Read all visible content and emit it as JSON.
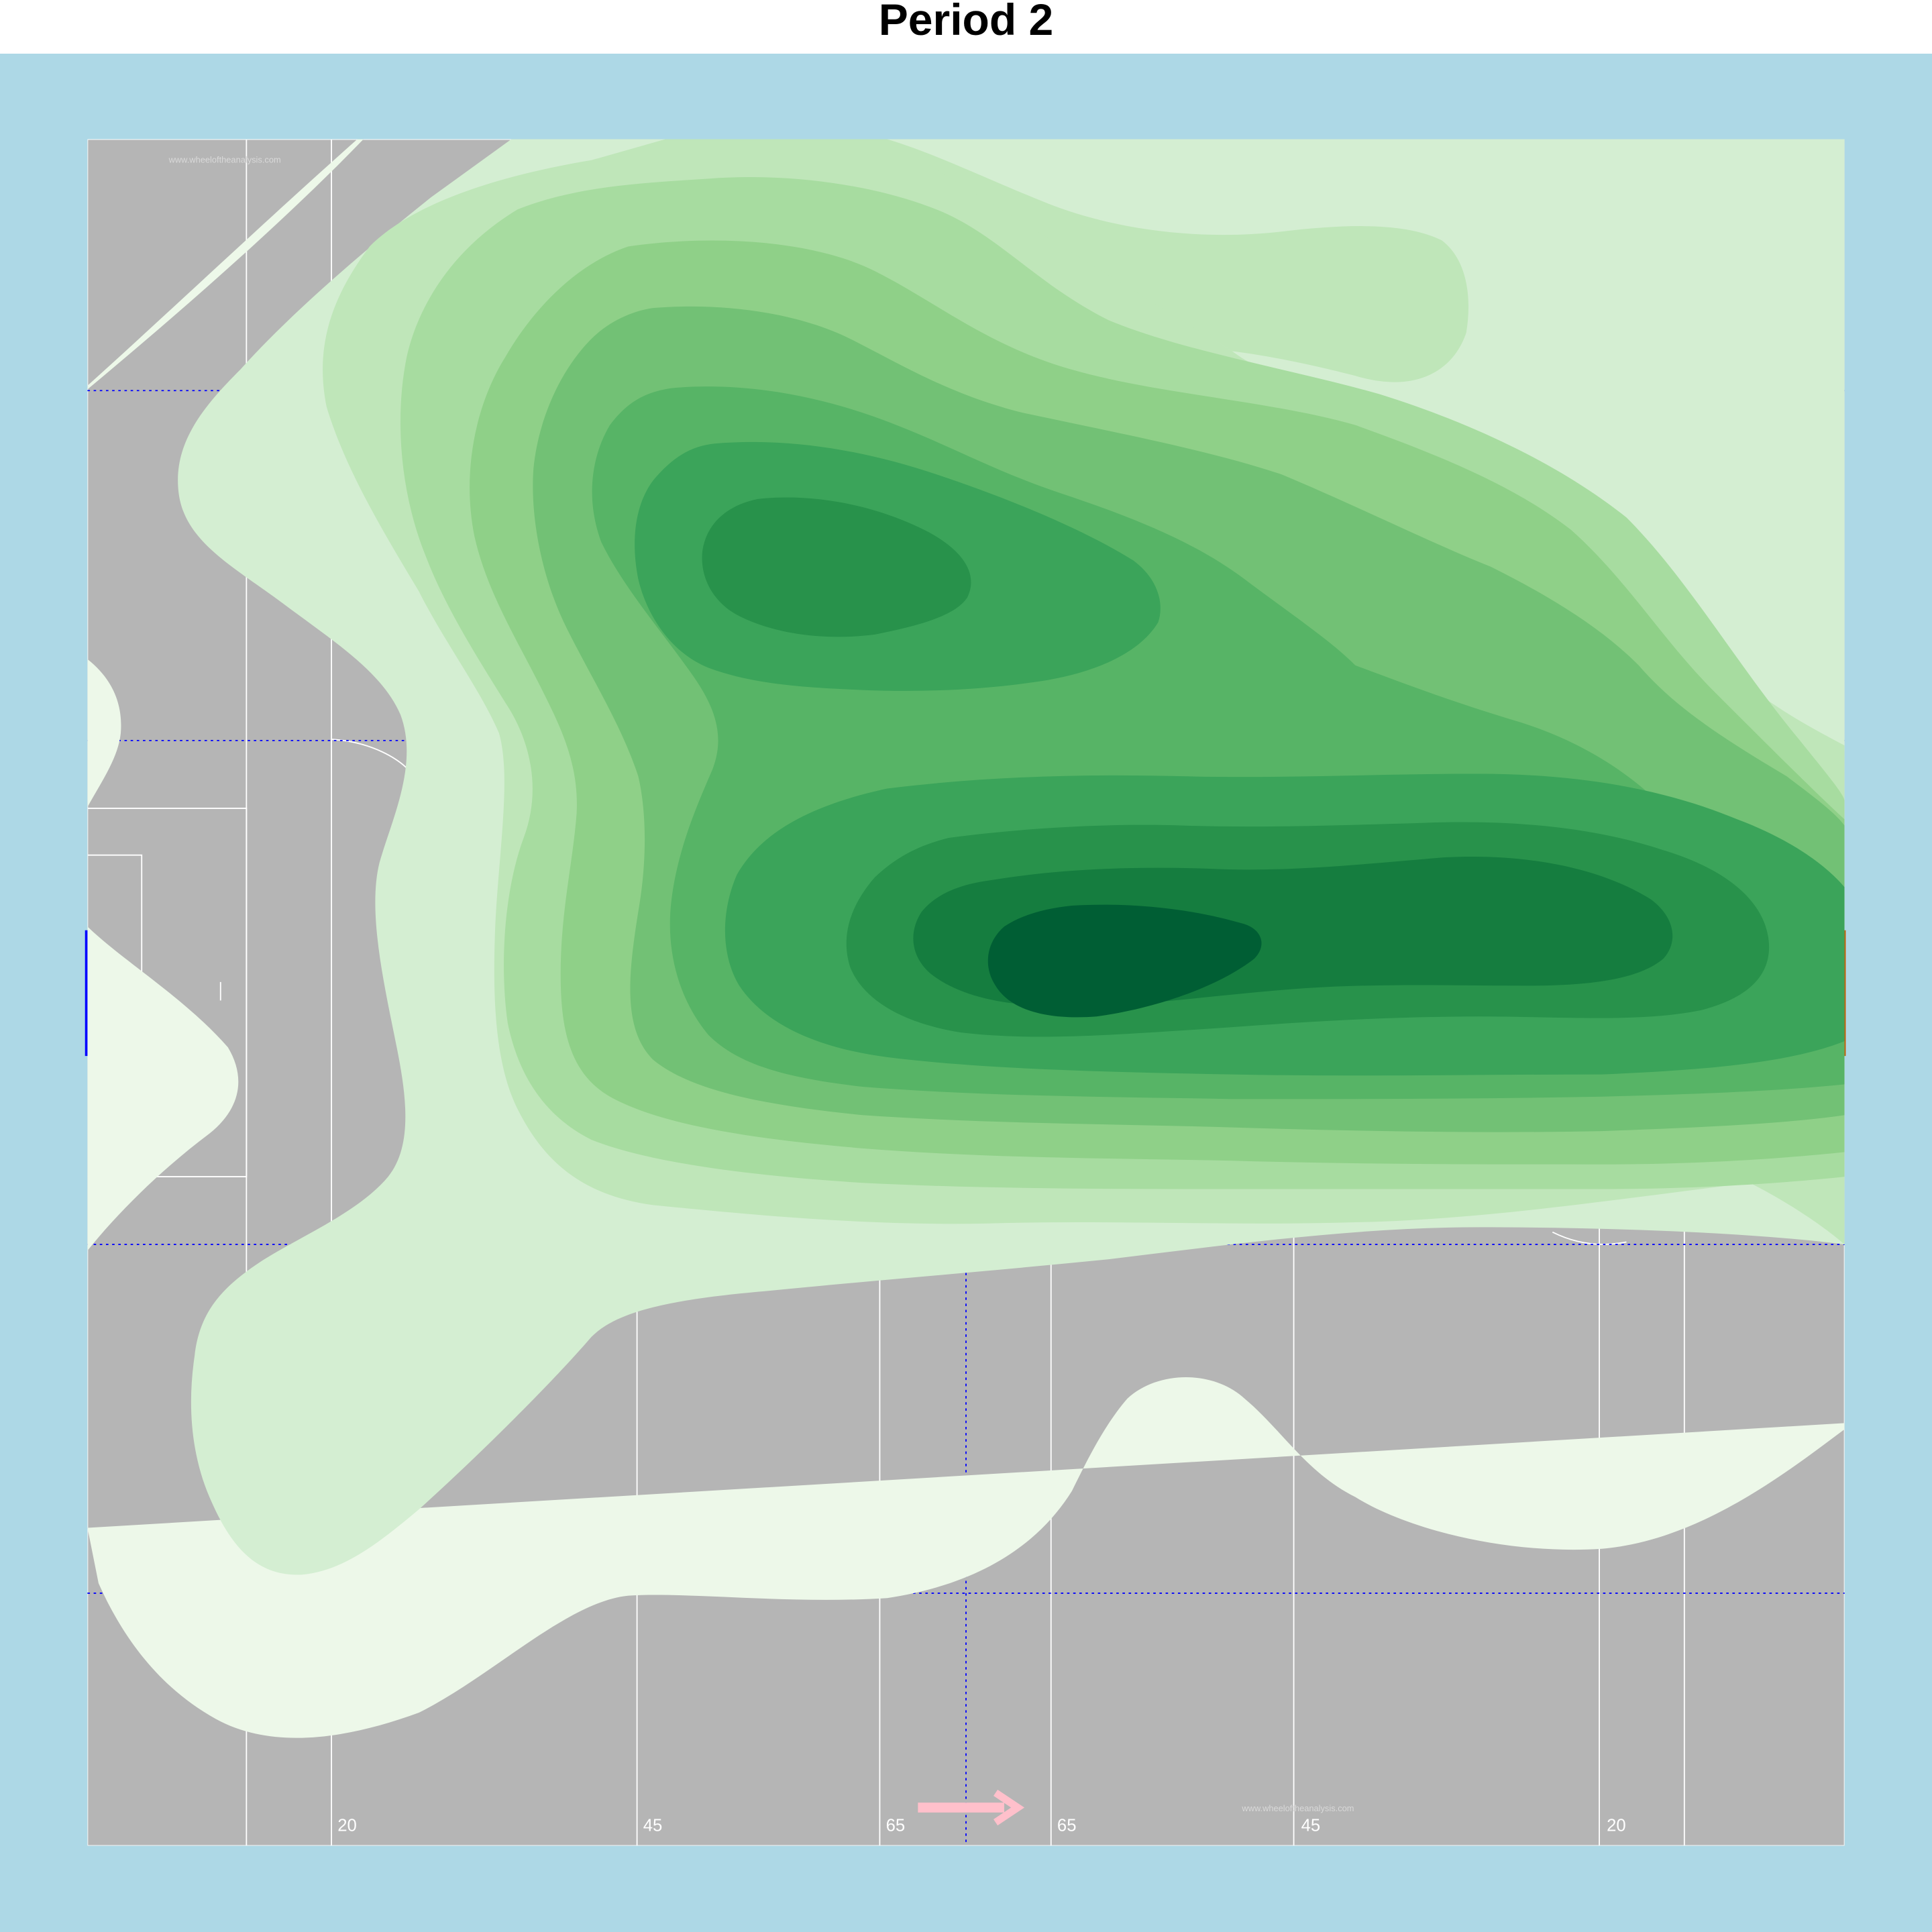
{
  "chart_data": {
    "type": "heatmap",
    "title": "Period 2",
    "subtype": "2D density contour over an Australian football oval",
    "xlabel": "",
    "ylabel": "",
    "grid": false,
    "xlim": [
      0,
      1
    ],
    "ylim": [
      0,
      1
    ],
    "tick_labels": [
      "20",
      "45",
      "65",
      "65",
      "45",
      "20"
    ],
    "watermark": "www.wheeloftheanalysis.com",
    "direction_arrow": "right",
    "contour_levels": 12,
    "density_peaks": [
      {
        "x": 0.58,
        "y": 0.51,
        "level": 12
      },
      {
        "x": 0.83,
        "y": 0.52,
        "level": 11
      },
      {
        "x": 0.44,
        "y": 0.25,
        "level": 10
      }
    ],
    "colors": {
      "background": "#add8e6",
      "field": "#b5b5b5",
      "lines": "#ffffff",
      "dotted_lines": "#0000ff",
      "arrow": "#ffc0cb",
      "contour_fills": [
        "#edf8e9",
        "#d4eed2",
        "#bfe6b9",
        "#a7dca0",
        "#8fd088",
        "#72c175",
        "#57b466",
        "#3ba45a",
        "#28924b",
        "#157d3f",
        "#005e34"
      ]
    }
  }
}
